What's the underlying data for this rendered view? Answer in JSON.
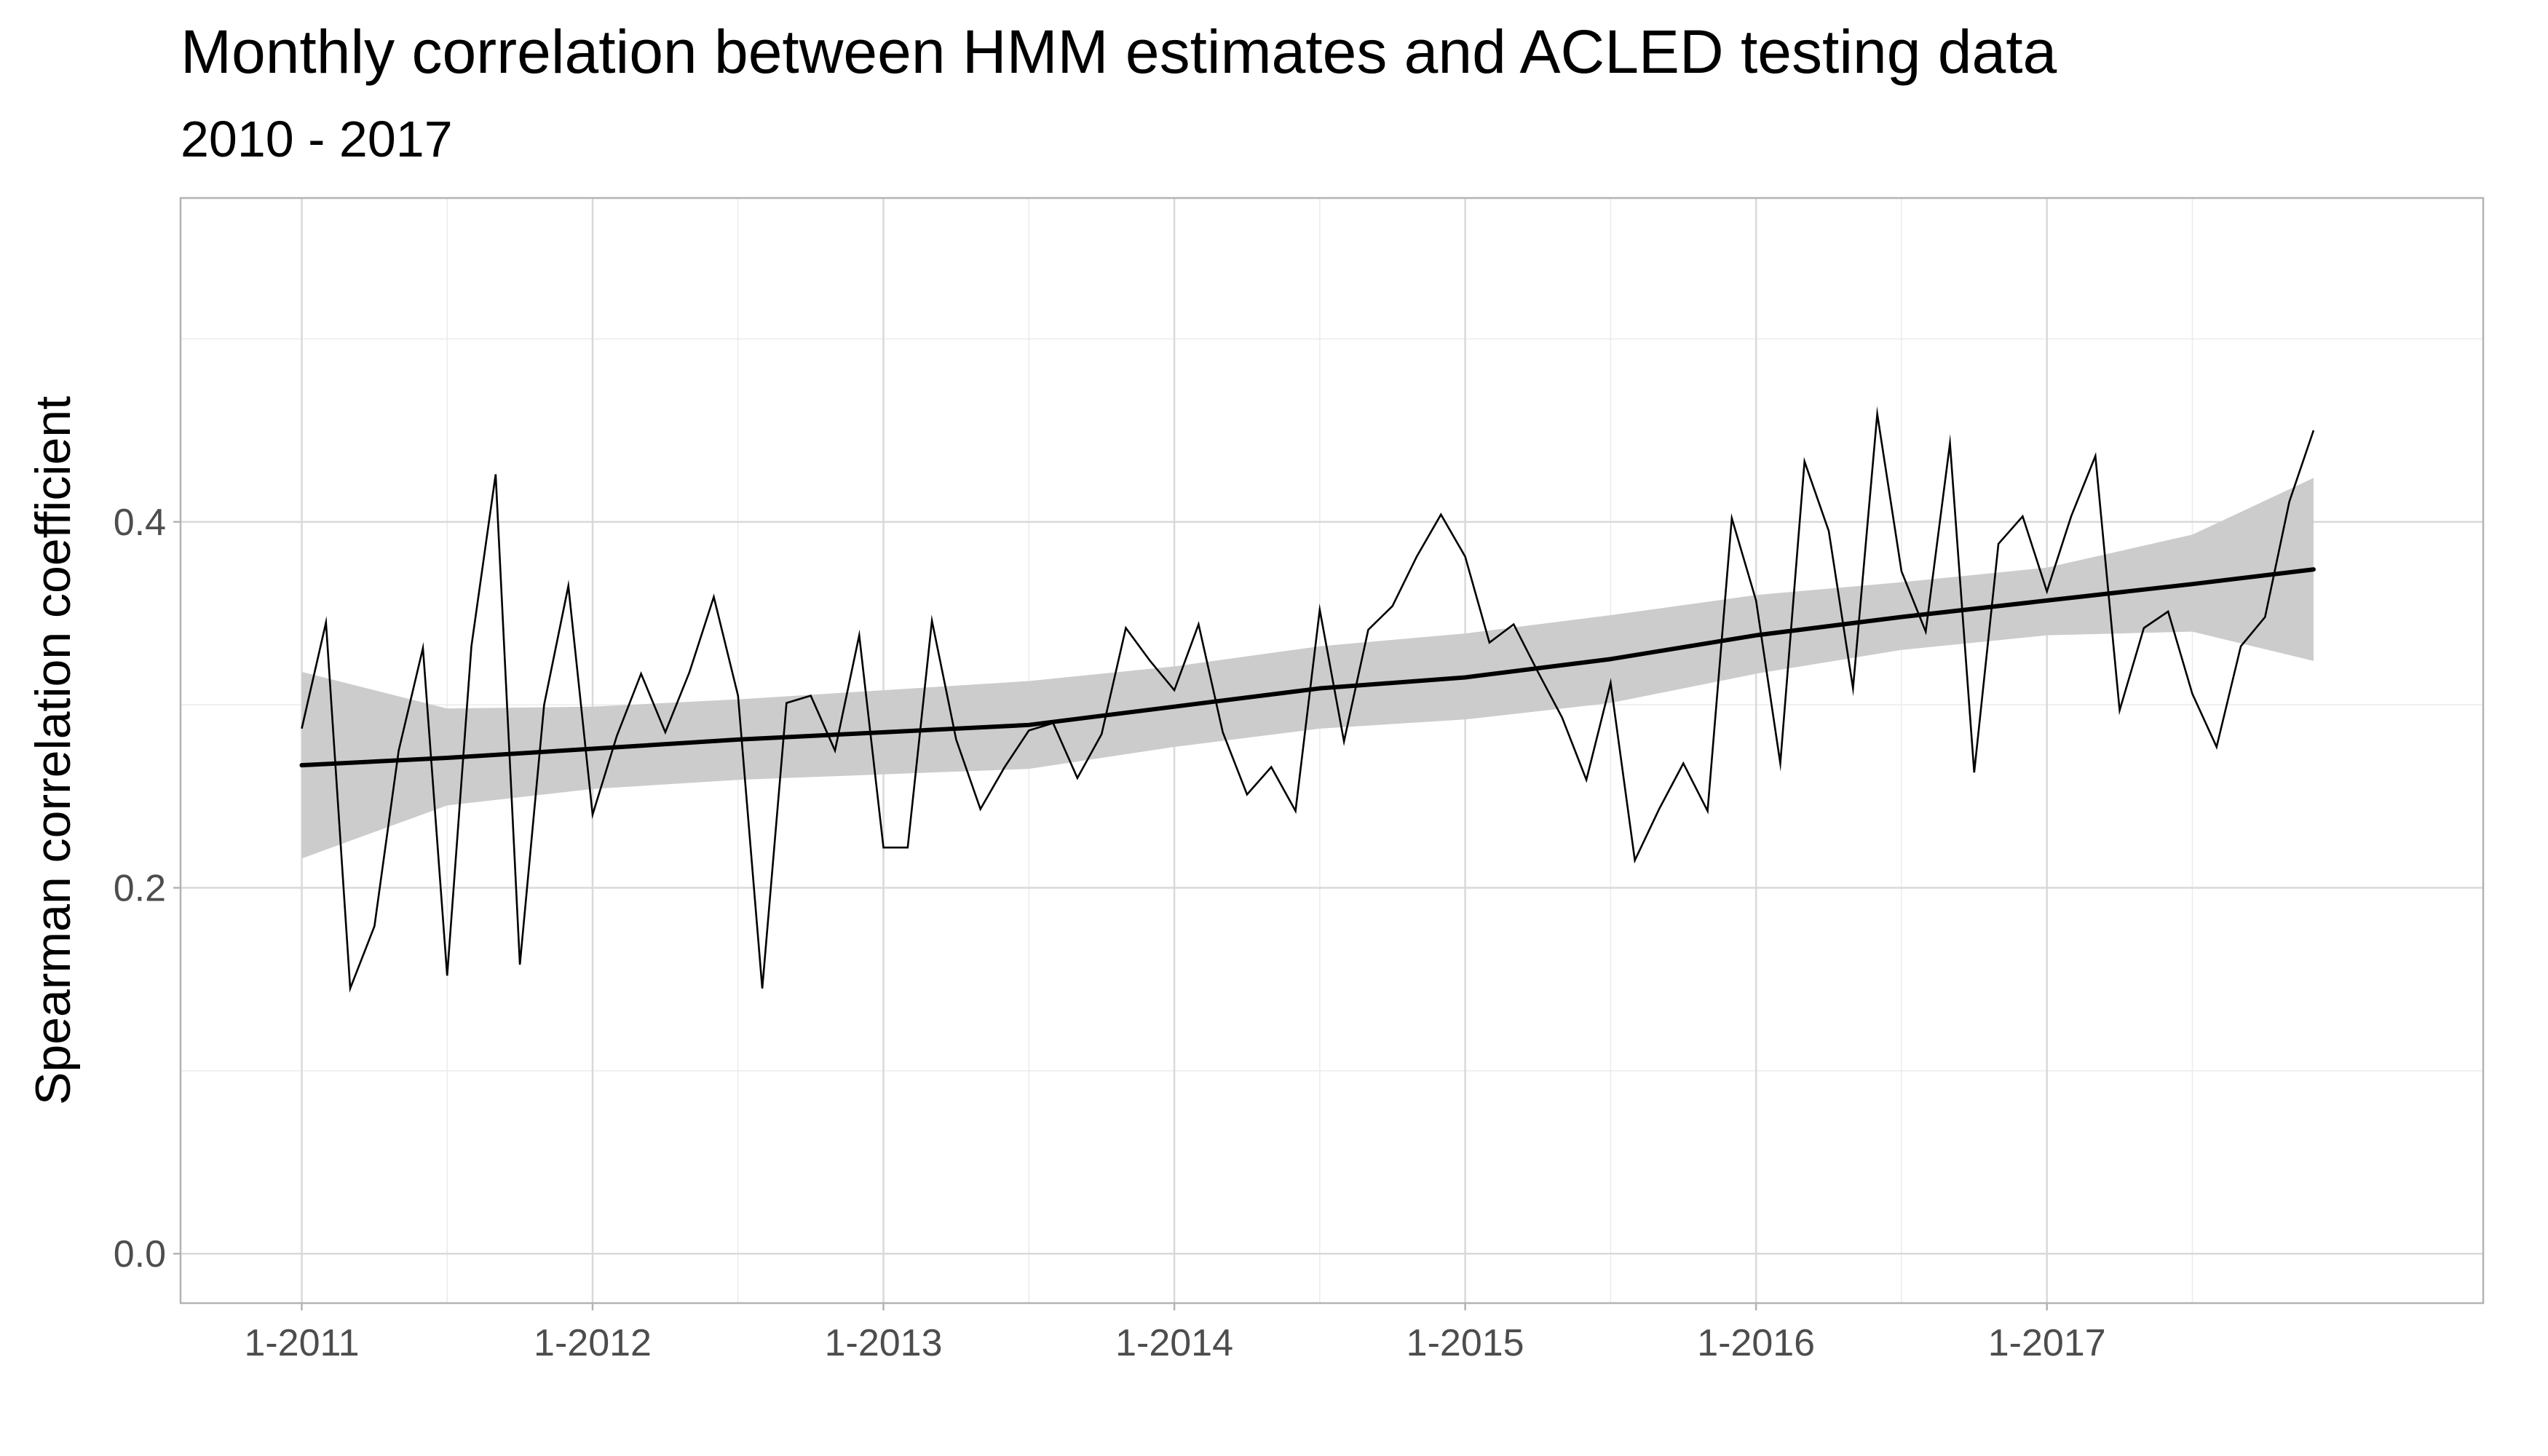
{
  "chart_data": {
    "type": "line",
    "title": "Monthly correlation between HMM estimates and ACLED testing data",
    "subtitle": "2010 - 2017",
    "xlabel": "",
    "ylabel": "Spearman correlation coefficient",
    "x_tick_labels": [
      "1-2011",
      "1-2012",
      "1-2013",
      "1-2014",
      "1-2015",
      "1-2016",
      "1-2017"
    ],
    "y_tick_labels": [
      "0.0",
      "0.2",
      "0.4"
    ],
    "y_ticks": [
      0,
      0.2,
      0.4
    ],
    "y_minor_ticks": [
      0.1,
      0.3,
      0.5
    ],
    "xlim": [
      "2010-08",
      "2018-07"
    ],
    "ylim": [
      -0.027,
      0.577
    ],
    "grid": true,
    "series": [
      {
        "role": "observed",
        "color": "#000000",
        "x": [
          "2011-01",
          "2011-02",
          "2011-03",
          "2011-04",
          "2011-05",
          "2011-06",
          "2011-07",
          "2011-08",
          "2011-09",
          "2011-10",
          "2011-11",
          "2011-12",
          "2012-01",
          "2012-02",
          "2012-03",
          "2012-04",
          "2012-05",
          "2012-06",
          "2012-07",
          "2012-08",
          "2012-09",
          "2012-10",
          "2012-11",
          "2012-12",
          "2013-01",
          "2013-02",
          "2013-03",
          "2013-04",
          "2013-05",
          "2013-06",
          "2013-07",
          "2013-08",
          "2013-09",
          "2013-10",
          "2013-11",
          "2013-12",
          "2014-01",
          "2014-02",
          "2014-03",
          "2014-04",
          "2014-05",
          "2014-06",
          "2014-07",
          "2014-08",
          "2014-09",
          "2014-10",
          "2014-11",
          "2014-12",
          "2015-01",
          "2015-02",
          "2015-03",
          "2015-04",
          "2015-05",
          "2015-06",
          "2015-07",
          "2015-08",
          "2015-09",
          "2015-10",
          "2015-11",
          "2015-12",
          "2016-01",
          "2016-02",
          "2016-03",
          "2016-04",
          "2016-05",
          "2016-06",
          "2016-07",
          "2016-08",
          "2016-09",
          "2016-10",
          "2016-11",
          "2016-12",
          "2017-01",
          "2017-02",
          "2017-03",
          "2017-04",
          "2017-05",
          "2017-06",
          "2017-07",
          "2017-08",
          "2017-09",
          "2017-10",
          "2017-11",
          "2017-12"
        ],
        "y": [
          0.287,
          0.345,
          0.145,
          0.179,
          0.275,
          0.331,
          0.152,
          0.332,
          0.426,
          0.158,
          0.3,
          0.365,
          0.24,
          0.283,
          0.317,
          0.285,
          0.318,
          0.359,
          0.305,
          0.145,
          0.301,
          0.305,
          0.275,
          0.338,
          0.222,
          0.222,
          0.346,
          0.281,
          0.243,
          0.266,
          0.286,
          0.29,
          0.26,
          0.284,
          0.342,
          0.324,
          0.308,
          0.344,
          0.285,
          0.251,
          0.266,
          0.242,
          0.352,
          0.28,
          0.341,
          0.354,
          0.381,
          0.404,
          0.381,
          0.334,
          0.344,
          0.318,
          0.293,
          0.259,
          0.312,
          0.215,
          0.243,
          0.268,
          0.242,
          0.402,
          0.357,
          0.268,
          0.433,
          0.395,
          0.309,
          0.459,
          0.373,
          0.34,
          0.443,
          0.263,
          0.388,
          0.403,
          0.362,
          0.403,
          0.436,
          0.297,
          0.342,
          0.351,
          0.306,
          0.277,
          0.332,
          0.348,
          0.411,
          0.45
        ]
      },
      {
        "role": "smoothed trend",
        "color": "#000000",
        "band_color": "#cccccc",
        "x": [
          "2011-01",
          "2011-07",
          "2012-01",
          "2012-07",
          "2013-01",
          "2013-07",
          "2014-01",
          "2014-07",
          "2015-01",
          "2015-07",
          "2016-01",
          "2016-07",
          "2017-01",
          "2017-07",
          "2017-12"
        ],
        "y": [
          0.267,
          0.271,
          0.276,
          0.281,
          0.285,
          0.289,
          0.299,
          0.309,
          0.315,
          0.325,
          0.338,
          0.348,
          0.357,
          0.366,
          0.374
        ],
        "band_lower": [
          0.216,
          0.245,
          0.254,
          0.259,
          0.262,
          0.265,
          0.277,
          0.287,
          0.292,
          0.301,
          0.317,
          0.33,
          0.338,
          0.34,
          0.324
        ],
        "band_upper": [
          0.318,
          0.298,
          0.299,
          0.303,
          0.308,
          0.313,
          0.321,
          0.332,
          0.339,
          0.349,
          0.36,
          0.367,
          0.375,
          0.393,
          0.424
        ]
      }
    ]
  }
}
